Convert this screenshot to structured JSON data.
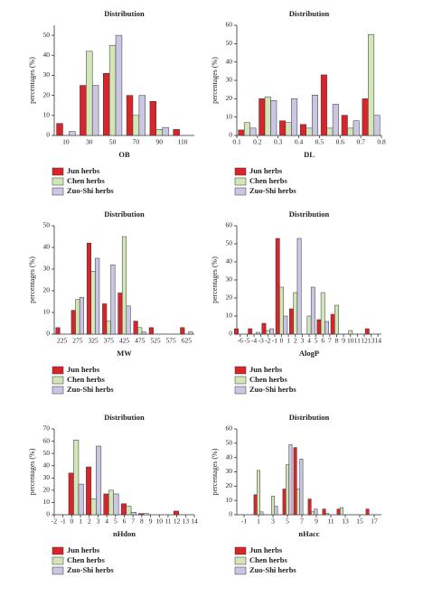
{
  "chart_data": [
    {
      "type": "bar",
      "title": "Distribution",
      "xlabel": "OB",
      "ylabel": "percentages (%)",
      "categories": [
        "10",
        "30",
        "50",
        "70",
        "90",
        "110"
      ],
      "series": [
        {
          "name": "Jun herbs",
          "color": "#d7252b",
          "values": [
            6,
            25,
            31,
            20,
            17,
            3
          ]
        },
        {
          "name": "Chen herbs",
          "color": "#d2e6b8",
          "values": [
            0,
            42,
            45,
            10,
            3,
            0
          ]
        },
        {
          "name": "Zuo-Shi herbs",
          "color": "#cbc6e4",
          "values": [
            2,
            25,
            50,
            20,
            4,
            0
          ]
        }
      ],
      "ylim": [
        0,
        55
      ],
      "yticks": [
        0,
        10,
        20,
        30,
        40,
        50
      ]
    },
    {
      "type": "bar",
      "title": "Distribution",
      "xlabel": "DL",
      "ylabel": "percentages (%)",
      "x": [
        0.15,
        0.25,
        0.35,
        0.45,
        0.55,
        0.65,
        0.75
      ],
      "series": [
        {
          "name": "Jun herbs",
          "color": "#d7252b",
          "values": [
            3,
            20,
            8,
            6,
            33,
            11,
            20
          ]
        },
        {
          "name": "Chen herbs",
          "color": "#d2e6b8",
          "values": [
            7,
            21,
            7,
            4,
            4,
            4,
            55
          ]
        },
        {
          "name": "Zuo-Shi herbs",
          "color": "#cbc6e4",
          "values": [
            4,
            19,
            20,
            22,
            17,
            8,
            11
          ]
        }
      ],
      "xlim": [
        0.1,
        0.8
      ],
      "xticks": [
        0.1,
        0.2,
        0.3,
        0.4,
        0.5,
        0.6,
        0.7,
        0.8
      ],
      "ylim": [
        0,
        60
      ],
      "yticks": [
        0,
        10,
        20,
        30,
        40,
        50,
        60
      ]
    },
    {
      "type": "bar",
      "title": "Distribution",
      "xlabel": "MW",
      "ylabel": "percentages (%)",
      "categories": [
        "225",
        "275",
        "325",
        "375",
        "425",
        "475",
        "525",
        "575",
        "625"
      ],
      "series": [
        {
          "name": "Jun herbs",
          "color": "#d7252b",
          "values": [
            3,
            11,
            42,
            14,
            19,
            6,
            3,
            0,
            3
          ]
        },
        {
          "name": "Chen herbs",
          "color": "#d2e6b8",
          "values": [
            0,
            16,
            29,
            6,
            45,
            3,
            0,
            0,
            0
          ]
        },
        {
          "name": "Zuo-Shi herbs",
          "color": "#cbc6e4",
          "values": [
            0,
            17,
            35,
            32,
            13,
            1,
            0,
            0,
            1
          ]
        }
      ],
      "ylim": [
        0,
        50
      ],
      "yticks": [
        0,
        10,
        20,
        30,
        40,
        50
      ]
    },
    {
      "type": "bar",
      "title": "Distribution",
      "xlabel": "AlogP",
      "ylabel": "percentages (%)",
      "x": [
        -6,
        -4,
        -2,
        0,
        2,
        4,
        6,
        8,
        10,
        13
      ],
      "series": [
        {
          "name": "Jun herbs",
          "color": "#d7252b",
          "values": [
            3,
            3,
            6,
            53,
            14,
            0,
            8,
            11,
            0,
            3
          ]
        },
        {
          "name": "Chen herbs",
          "color": "#d2e6b8",
          "values": [
            0,
            0,
            2,
            26,
            23,
            10,
            23,
            16,
            2,
            0
          ]
        },
        {
          "name": "Zuo-Shi herbs",
          "color": "#cbc6e4",
          "values": [
            0,
            1,
            3,
            10,
            53,
            26,
            7,
            0,
            0,
            0
          ]
        }
      ],
      "xlim": [
        -6.5,
        14.5
      ],
      "xticks": [
        -6,
        -5,
        -4,
        -3,
        -2,
        -1,
        0,
        1,
        2,
        3,
        4,
        5,
        6,
        7,
        8,
        9,
        10,
        11,
        12,
        13,
        14
      ],
      "ylim": [
        0,
        60
      ],
      "yticks": [
        0,
        10,
        20,
        30,
        40,
        50,
        60
      ]
    },
    {
      "type": "bar",
      "title": "Distribution",
      "xlabel": "nHdon",
      "ylabel": "percentages (%)",
      "x": [
        0.5,
        2.5,
        4.5,
        6.5,
        8.5,
        12.5
      ],
      "series": [
        {
          "name": "Jun herbs",
          "color": "#d7252b",
          "values": [
            34,
            39,
            17,
            9,
            1,
            3
          ]
        },
        {
          "name": "Chen herbs",
          "color": "#d2e6b8",
          "values": [
            61,
            13,
            20,
            7,
            1,
            0
          ]
        },
        {
          "name": "Zuo-Shi herbs",
          "color": "#cbc6e4",
          "values": [
            25,
            56,
            17,
            2,
            0,
            0
          ]
        }
      ],
      "xlim": [
        -2,
        14
      ],
      "xticks": [
        -2,
        -1,
        0,
        1,
        2,
        3,
        4,
        5,
        6,
        7,
        8,
        9,
        10,
        11,
        12,
        13,
        14
      ],
      "ylim": [
        0,
        70
      ],
      "yticks": [
        0,
        10,
        20,
        30,
        40,
        50,
        60,
        70
      ]
    },
    {
      "type": "bar",
      "title": "Distribution",
      "xlabel": "nHacc",
      "ylabel": "percentages (%)",
      "x": [
        1,
        3,
        5,
        6.5,
        8.5,
        10.5,
        12.5,
        16.5
      ],
      "series": [
        {
          "name": "Jun herbs",
          "color": "#d7252b",
          "values": [
            14,
            0,
            18,
            47,
            11,
            4,
            4,
            4
          ]
        },
        {
          "name": "Chen herbs",
          "color": "#d2e6b8",
          "values": [
            31,
            13,
            35,
            18,
            2,
            1,
            5,
            0
          ]
        },
        {
          "name": "Zuo-Shi herbs",
          "color": "#cbc6e4",
          "values": [
            2,
            6,
            49,
            39,
            4,
            0,
            0,
            0
          ]
        }
      ],
      "xlim": [
        -2,
        18
      ],
      "xticks": [
        -1,
        1,
        3,
        5,
        7,
        9,
        11,
        13,
        15,
        17
      ],
      "ylim": [
        0,
        60
      ],
      "yticks": [
        0,
        10,
        20,
        30,
        40,
        50,
        60
      ]
    }
  ]
}
